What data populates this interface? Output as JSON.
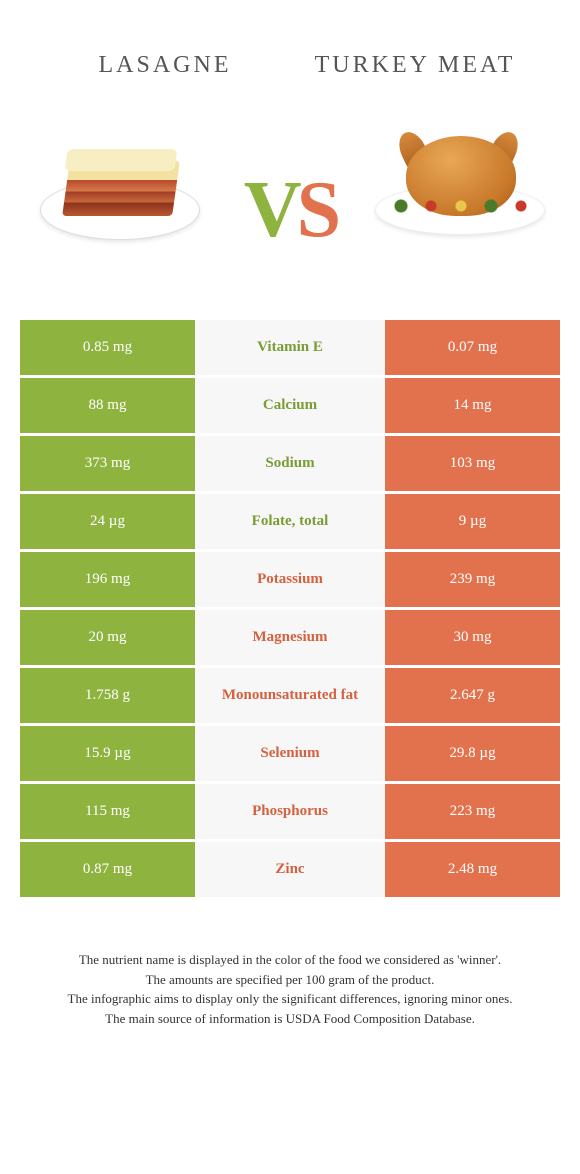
{
  "titles": {
    "left": "Lasagne",
    "right": "Turkey meat"
  },
  "vs": {
    "v": "V",
    "s": "S"
  },
  "colors": {
    "left_bg": "#8eb43f",
    "right_bg": "#e2724d",
    "mid_bg": "#f7f7f7",
    "left_text": "#7a9c34",
    "right_text": "#d4613f"
  },
  "rows": [
    {
      "left": "0.85 mg",
      "mid": "Vitamin E",
      "right": "0.07 mg",
      "winner": "left"
    },
    {
      "left": "88 mg",
      "mid": "Calcium",
      "right": "14 mg",
      "winner": "left"
    },
    {
      "left": "373 mg",
      "mid": "Sodium",
      "right": "103 mg",
      "winner": "left"
    },
    {
      "left": "24 µg",
      "mid": "Folate, total",
      "right": "9 µg",
      "winner": "left"
    },
    {
      "left": "196 mg",
      "mid": "Potassium",
      "right": "239 mg",
      "winner": "right"
    },
    {
      "left": "20 mg",
      "mid": "Magnesium",
      "right": "30 mg",
      "winner": "right"
    },
    {
      "left": "1.758 g",
      "mid": "Monounsaturated fat",
      "right": "2.647 g",
      "winner": "right"
    },
    {
      "left": "15.9 µg",
      "mid": "Selenium",
      "right": "29.8 µg",
      "winner": "right"
    },
    {
      "left": "115 mg",
      "mid": "Phosphorus",
      "right": "223 mg",
      "winner": "right"
    },
    {
      "left": "0.87 mg",
      "mid": "Zinc",
      "right": "2.48 mg",
      "winner": "right"
    }
  ],
  "footer": {
    "line1": "The nutrient name is displayed in the color of the food we considered as 'winner'.",
    "line2": "The amounts are specified per 100 gram of the product.",
    "line3": "The infographic aims to display only the significant differences, ignoring minor ones.",
    "line4": "The main source of information is USDA Food Composition Database."
  }
}
